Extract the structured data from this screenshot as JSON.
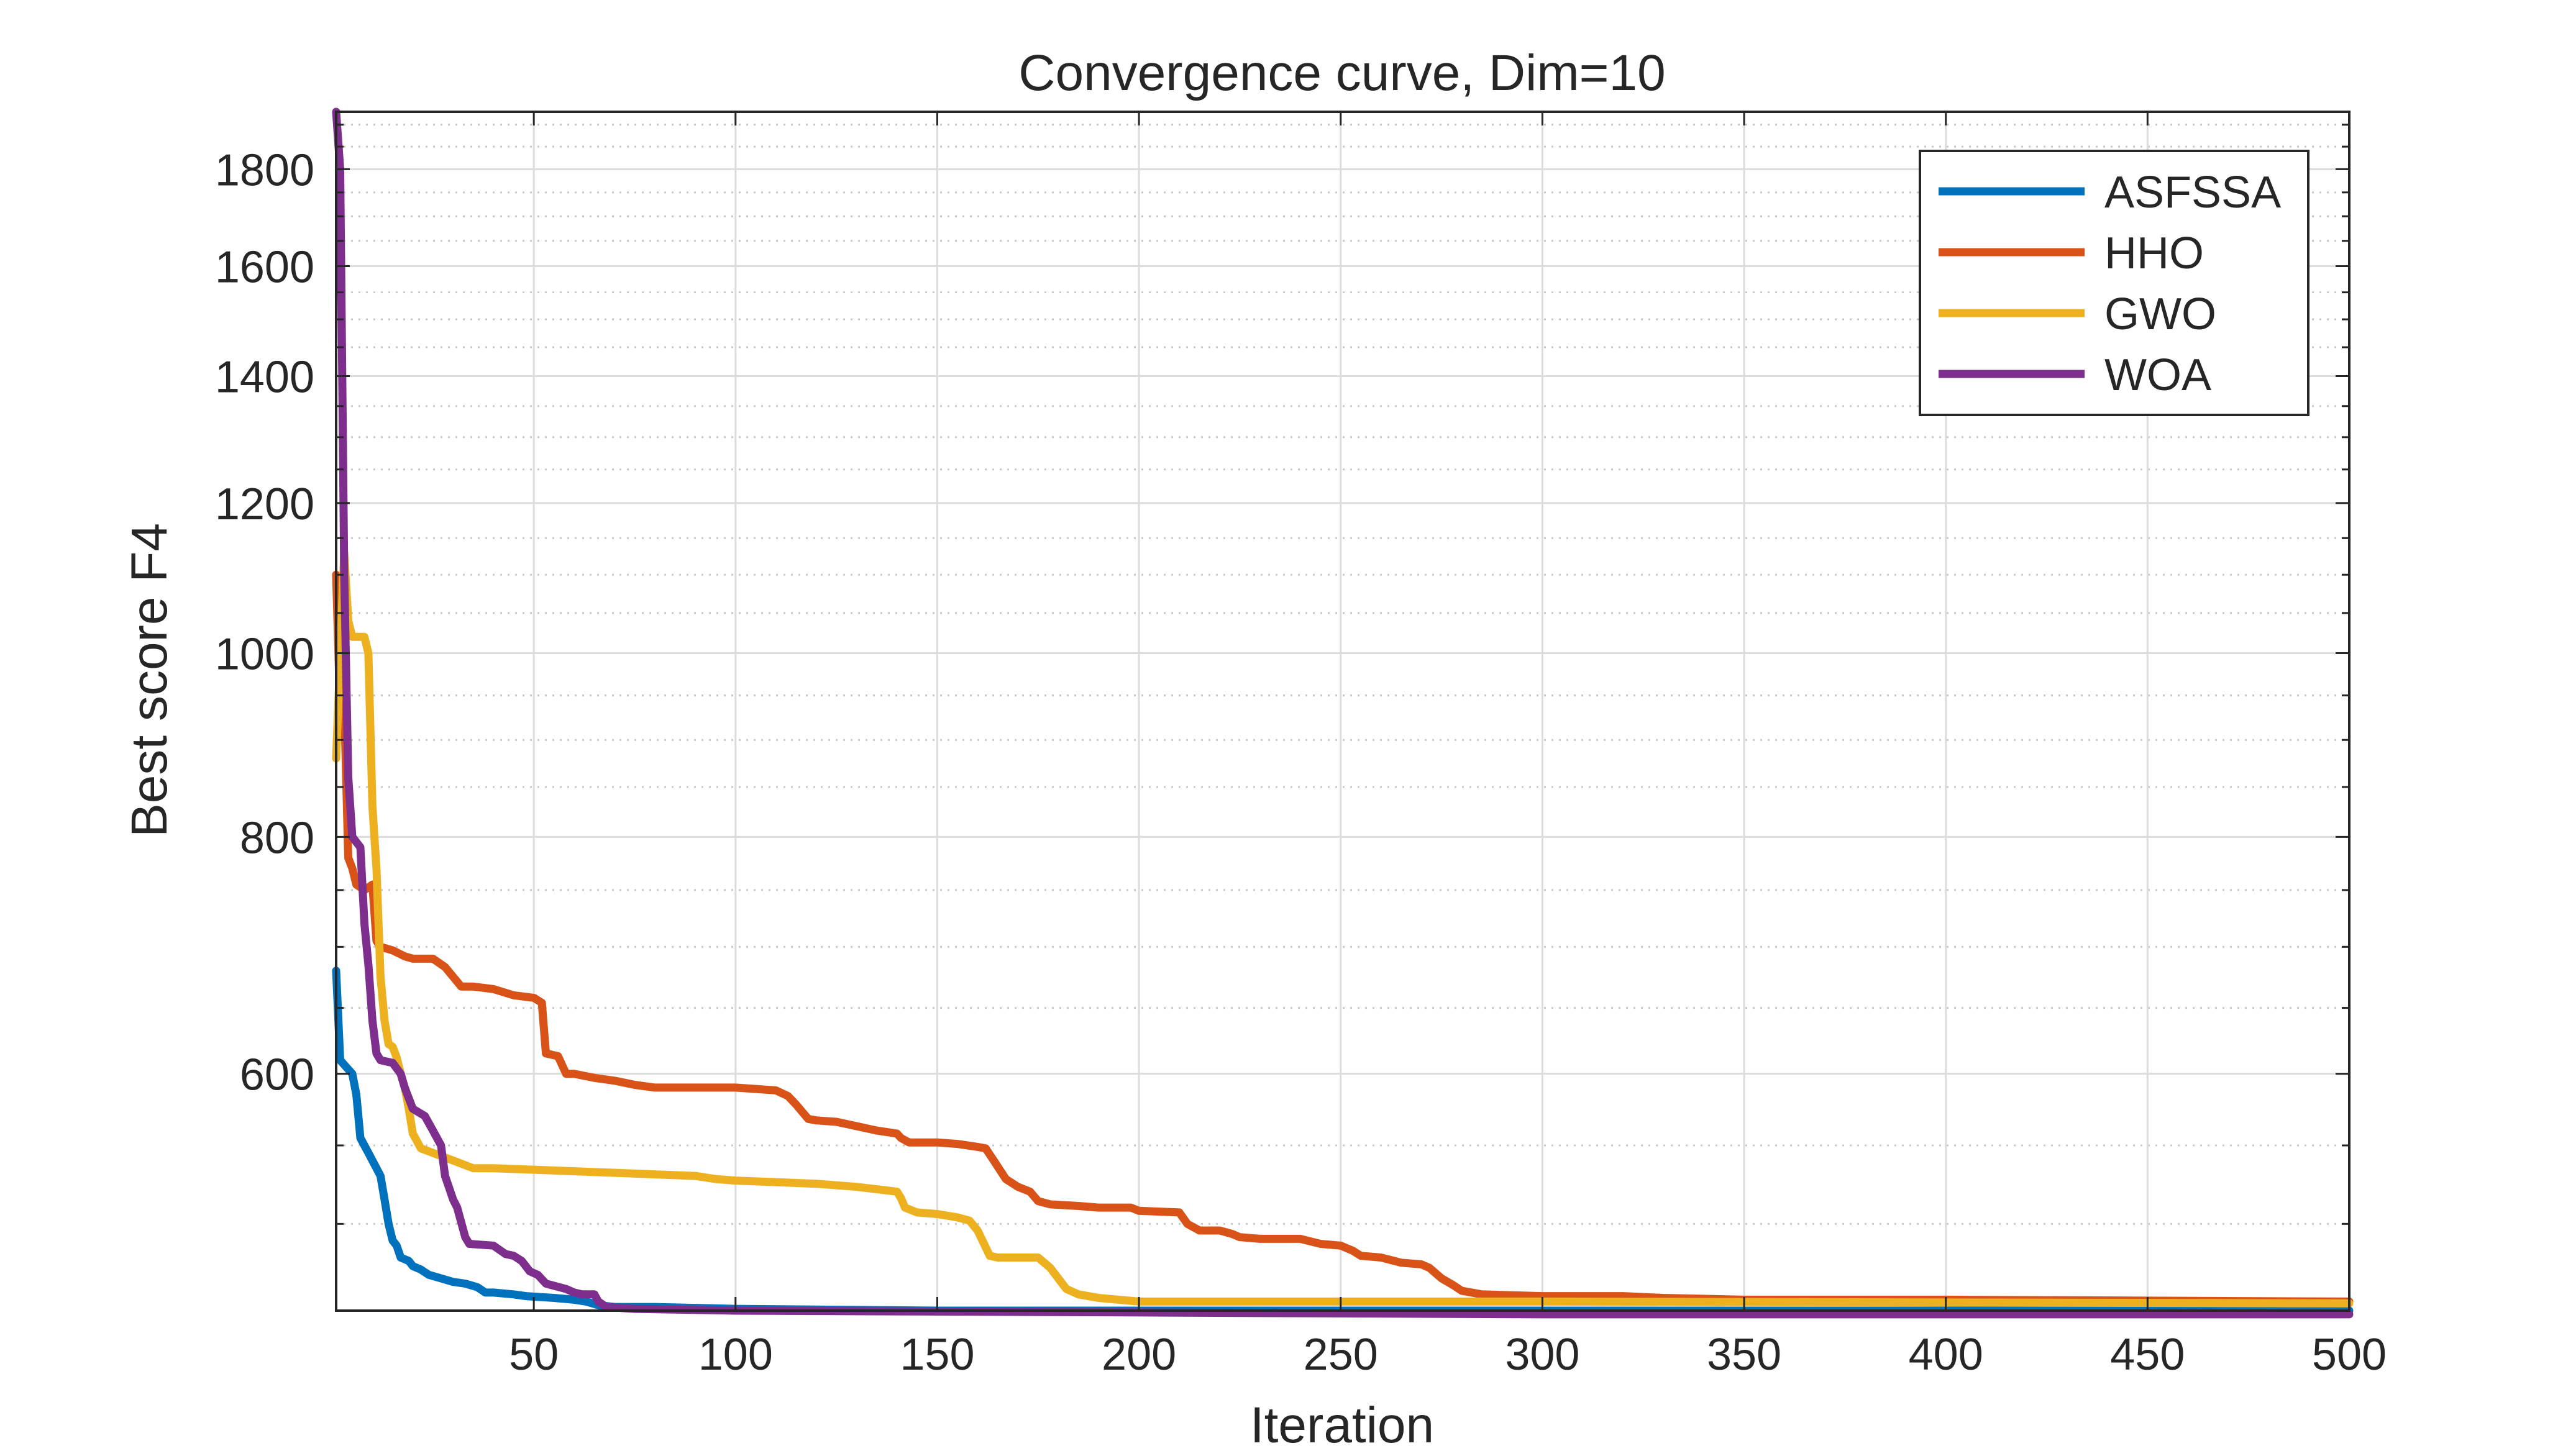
{
  "chart_data": {
    "type": "line",
    "title": "Convergence curve, Dim=10",
    "xlabel": "Iteration",
    "ylabel": "Best score F4",
    "xlim": [
      1,
      500
    ],
    "ylim": [
      450,
      1930
    ],
    "y_scale": "log",
    "grid": true,
    "minor_grid": true,
    "legend_position": "top-right",
    "x_ticks": [
      50,
      100,
      150,
      200,
      250,
      300,
      350,
      400,
      450,
      500
    ],
    "y_ticks": [
      600,
      800,
      1000,
      1200,
      1400,
      1600,
      1800
    ],
    "y_minor_ticks": [
      500,
      550,
      650,
      700,
      750,
      850,
      900,
      950,
      1050,
      1100,
      1150,
      1250,
      1300,
      1350,
      1450,
      1500,
      1550,
      1650,
      1700,
      1750,
      1850,
      1900
    ],
    "series": [
      {
        "name": "ASFSSA",
        "color": "#0072BD",
        "points": [
          [
            1,
            680
          ],
          [
            2,
            610
          ],
          [
            5,
            600
          ],
          [
            6,
            585
          ],
          [
            7,
            555
          ],
          [
            9,
            545
          ],
          [
            11,
            535
          ],
          [
            12,
            530
          ],
          [
            13,
            515
          ],
          [
            14,
            500
          ],
          [
            15,
            490
          ],
          [
            16,
            487
          ],
          [
            17,
            480
          ],
          [
            19,
            478
          ],
          [
            20,
            475
          ],
          [
            22,
            473
          ],
          [
            24,
            470
          ],
          [
            27,
            468
          ],
          [
            30,
            466
          ],
          [
            33,
            465
          ],
          [
            36,
            463
          ],
          [
            38,
            460
          ],
          [
            40,
            460
          ],
          [
            45,
            459
          ],
          [
            48,
            458
          ],
          [
            55,
            457
          ],
          [
            60,
            456
          ],
          [
            63,
            455
          ],
          [
            66,
            453
          ],
          [
            70,
            452
          ],
          [
            80,
            452
          ],
          [
            100,
            451
          ],
          [
            150,
            450
          ],
          [
            200,
            450
          ],
          [
            300,
            450
          ],
          [
            500,
            450
          ]
        ]
      },
      {
        "name": "HHO",
        "color": "#D95319",
        "points": [
          [
            1,
            1100
          ],
          [
            2,
            930
          ],
          [
            3,
            940
          ],
          [
            4,
            780
          ],
          [
            5,
            770
          ],
          [
            6,
            755
          ],
          [
            8,
            750
          ],
          [
            10,
            755
          ],
          [
            11,
            705
          ],
          [
            12,
            700
          ],
          [
            15,
            697
          ],
          [
            18,
            692
          ],
          [
            20,
            690
          ],
          [
            25,
            690
          ],
          [
            28,
            683
          ],
          [
            30,
            675
          ],
          [
            32,
            667
          ],
          [
            35,
            667
          ],
          [
            40,
            665
          ],
          [
            45,
            660
          ],
          [
            50,
            658
          ],
          [
            52,
            654
          ],
          [
            53,
            615
          ],
          [
            56,
            613
          ],
          [
            58,
            600
          ],
          [
            60,
            600
          ],
          [
            65,
            597
          ],
          [
            70,
            595
          ],
          [
            75,
            592
          ],
          [
            80,
            590
          ],
          [
            100,
            590
          ],
          [
            110,
            588
          ],
          [
            113,
            584
          ],
          [
            115,
            578
          ],
          [
            118,
            568
          ],
          [
            120,
            567
          ],
          [
            125,
            566
          ],
          [
            130,
            563
          ],
          [
            135,
            560
          ],
          [
            140,
            558
          ],
          [
            141,
            555
          ],
          [
            143,
            552
          ],
          [
            150,
            552
          ],
          [
            155,
            551
          ],
          [
            160,
            549
          ],
          [
            162,
            548
          ],
          [
            164,
            540
          ],
          [
            167,
            528
          ],
          [
            170,
            523
          ],
          [
            173,
            520
          ],
          [
            175,
            514
          ],
          [
            178,
            512
          ],
          [
            185,
            511
          ],
          [
            190,
            510
          ],
          [
            198,
            510
          ],
          [
            200,
            508
          ],
          [
            210,
            507
          ],
          [
            212,
            500
          ],
          [
            215,
            496
          ],
          [
            220,
            496
          ],
          [
            223,
            494
          ],
          [
            225,
            492
          ],
          [
            230,
            491
          ],
          [
            240,
            491
          ],
          [
            245,
            488
          ],
          [
            250,
            487
          ],
          [
            253,
            484
          ],
          [
            255,
            481
          ],
          [
            260,
            480
          ],
          [
            265,
            477
          ],
          [
            270,
            476
          ],
          [
            272,
            474
          ],
          [
            275,
            468
          ],
          [
            278,
            464
          ],
          [
            280,
            461
          ],
          [
            285,
            459
          ],
          [
            300,
            458
          ],
          [
            320,
            458
          ],
          [
            330,
            457
          ],
          [
            350,
            456
          ],
          [
            400,
            456
          ],
          [
            500,
            455
          ]
        ]
      },
      {
        "name": "GWO",
        "color": "#EDB120",
        "points": [
          [
            1,
            880
          ],
          [
            3,
            1130
          ],
          [
            4,
            1040
          ],
          [
            5,
            1020
          ],
          [
            8,
            1020
          ],
          [
            9,
            1000
          ],
          [
            10,
            830
          ],
          [
            11,
            770
          ],
          [
            12,
            675
          ],
          [
            13,
            640
          ],
          [
            14,
            622
          ],
          [
            15,
            620
          ],
          [
            16,
            612
          ],
          [
            17,
            600
          ],
          [
            18,
            590
          ],
          [
            19,
            575
          ],
          [
            20,
            558
          ],
          [
            22,
            548
          ],
          [
            25,
            545
          ],
          [
            30,
            540
          ],
          [
            35,
            535
          ],
          [
            40,
            535
          ],
          [
            50,
            534
          ],
          [
            60,
            533
          ],
          [
            80,
            531
          ],
          [
            90,
            530
          ],
          [
            95,
            528
          ],
          [
            100,
            527
          ],
          [
            110,
            526
          ],
          [
            120,
            525
          ],
          [
            130,
            523
          ],
          [
            140,
            520
          ],
          [
            141,
            516
          ],
          [
            142,
            510
          ],
          [
            145,
            507
          ],
          [
            150,
            506
          ],
          [
            155,
            504
          ],
          [
            158,
            502
          ],
          [
            160,
            496
          ],
          [
            162,
            486
          ],
          [
            163,
            481
          ],
          [
            165,
            480
          ],
          [
            175,
            480
          ],
          [
            176,
            478
          ],
          [
            178,
            474
          ],
          [
            180,
            468
          ],
          [
            182,
            462
          ],
          [
            185,
            459
          ],
          [
            190,
            457
          ],
          [
            200,
            455
          ],
          [
            300,
            455
          ],
          [
            500,
            454
          ]
        ]
      },
      {
        "name": "WOA",
        "color": "#7E2F8E",
        "points": [
          [
            1,
            1930
          ],
          [
            2,
            1800
          ],
          [
            3,
            1100
          ],
          [
            4,
            860
          ],
          [
            5,
            800
          ],
          [
            7,
            790
          ],
          [
            8,
            720
          ],
          [
            9,
            685
          ],
          [
            10,
            640
          ],
          [
            11,
            615
          ],
          [
            12,
            610
          ],
          [
            15,
            608
          ],
          [
            17,
            600
          ],
          [
            18,
            590
          ],
          [
            20,
            575
          ],
          [
            23,
            570
          ],
          [
            25,
            560
          ],
          [
            27,
            550
          ],
          [
            28,
            530
          ],
          [
            30,
            515
          ],
          [
            31,
            510
          ],
          [
            33,
            492
          ],
          [
            34,
            488
          ],
          [
            40,
            487
          ],
          [
            43,
            482
          ],
          [
            45,
            481
          ],
          [
            47,
            478
          ],
          [
            49,
            472
          ],
          [
            51,
            470
          ],
          [
            53,
            465
          ],
          [
            58,
            462
          ],
          [
            60,
            460
          ],
          [
            62,
            459
          ],
          [
            65,
            459
          ],
          [
            66,
            455
          ],
          [
            68,
            452
          ],
          [
            75,
            451
          ],
          [
            100,
            450
          ],
          [
            200,
            449
          ],
          [
            300,
            448
          ],
          [
            500,
            448
          ]
        ]
      }
    ]
  }
}
